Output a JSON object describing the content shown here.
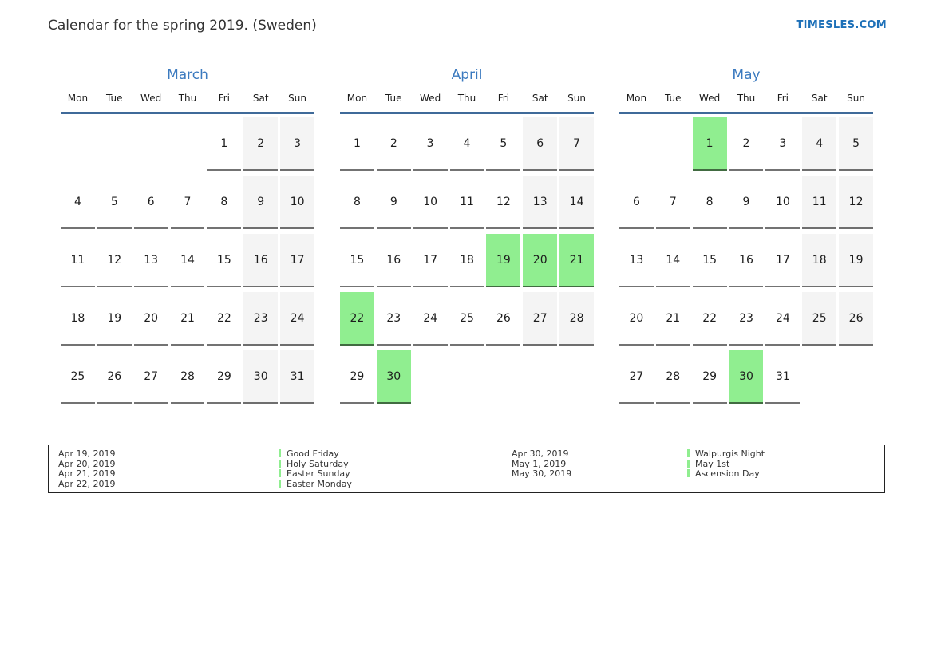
{
  "page": {
    "title": "Calendar for the spring 2019. (Sweden)",
    "site_link": "TIMESLES.COM"
  },
  "colors": {
    "holiday_green": "#90ee90",
    "weekend_gray": "#f4f4f4",
    "header_line_blue": "#3f6a99",
    "month_title_blue": "#3b7abf",
    "link_blue": "#1d70b8",
    "text_dark": "#1d1d1d"
  },
  "weekdays": [
    "Mon",
    "Tue",
    "Wed",
    "Thu",
    "Fri",
    "Sat",
    "Sun"
  ],
  "months": [
    {
      "name": "March",
      "weeks": [
        [
          null,
          null,
          null,
          null,
          1,
          2,
          3
        ],
        [
          4,
          5,
          6,
          7,
          8,
          9,
          10
        ],
        [
          11,
          12,
          13,
          14,
          15,
          16,
          17
        ],
        [
          18,
          19,
          20,
          21,
          22,
          23,
          24
        ],
        [
          25,
          26,
          27,
          28,
          29,
          30,
          31
        ]
      ],
      "highlighted_days": []
    },
    {
      "name": "April",
      "weeks": [
        [
          1,
          2,
          3,
          4,
          5,
          6,
          7
        ],
        [
          8,
          9,
          10,
          11,
          12,
          13,
          14
        ],
        [
          15,
          16,
          17,
          18,
          19,
          20,
          21
        ],
        [
          22,
          23,
          24,
          25,
          26,
          27,
          28
        ],
        [
          29,
          30,
          null,
          null,
          null,
          null,
          null
        ]
      ],
      "highlighted_days": [
        19,
        20,
        21,
        22,
        30
      ]
    },
    {
      "name": "May",
      "weeks": [
        [
          null,
          null,
          1,
          2,
          3,
          4,
          5
        ],
        [
          6,
          7,
          8,
          9,
          10,
          11,
          12
        ],
        [
          13,
          14,
          15,
          16,
          17,
          18,
          19
        ],
        [
          20,
          21,
          22,
          23,
          24,
          25,
          26
        ],
        [
          27,
          28,
          29,
          30,
          31,
          null,
          null
        ]
      ],
      "highlighted_days": [
        1,
        30
      ]
    }
  ],
  "legend": {
    "groups": [
      {
        "entries": [
          {
            "date": "Apr 19, 2019",
            "name": "Good Friday"
          },
          {
            "date": "Apr 20, 2019",
            "name": "Holy Saturday"
          },
          {
            "date": "Apr 21, 2019",
            "name": "Easter Sunday"
          },
          {
            "date": "Apr 22, 2019",
            "name": "Easter Monday"
          }
        ]
      },
      {
        "entries": [
          {
            "date": "Apr 30, 2019",
            "name": "Walpurgis Night"
          },
          {
            "date": "May 1, 2019",
            "name": "May 1st"
          },
          {
            "date": "May 30, 2019",
            "name": "Ascension Day"
          }
        ]
      }
    ]
  }
}
